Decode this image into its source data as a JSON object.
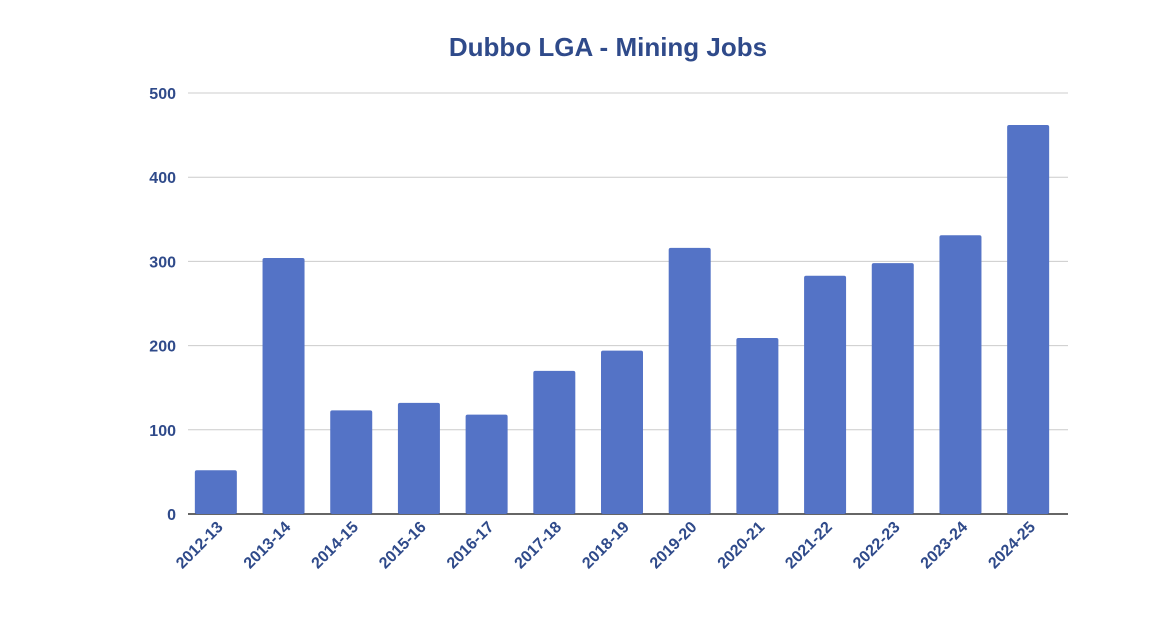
{
  "chart_data": {
    "type": "bar",
    "title": "Dubbo LGA - Mining Jobs",
    "xlabel": "",
    "ylabel": "",
    "categories": [
      "2012-13",
      "2013-14",
      "2014-15",
      "2015-16",
      "2016-17",
      "2017-18",
      "2018-19",
      "2019-20",
      "2020-21",
      "2021-22",
      "2022-23",
      "2023-24",
      "2024-25"
    ],
    "values": [
      52,
      304,
      123,
      132,
      118,
      170,
      194,
      316,
      209,
      283,
      298,
      331,
      462
    ],
    "ylim": [
      0,
      500
    ],
    "yticks": [
      0,
      100,
      200,
      300,
      400,
      500
    ],
    "grid": true,
    "legend": "none",
    "colors": {
      "bar": "#5473C6",
      "text": "#2F4A8A",
      "grid": "#CCCCCC",
      "axis": "#333333"
    }
  }
}
